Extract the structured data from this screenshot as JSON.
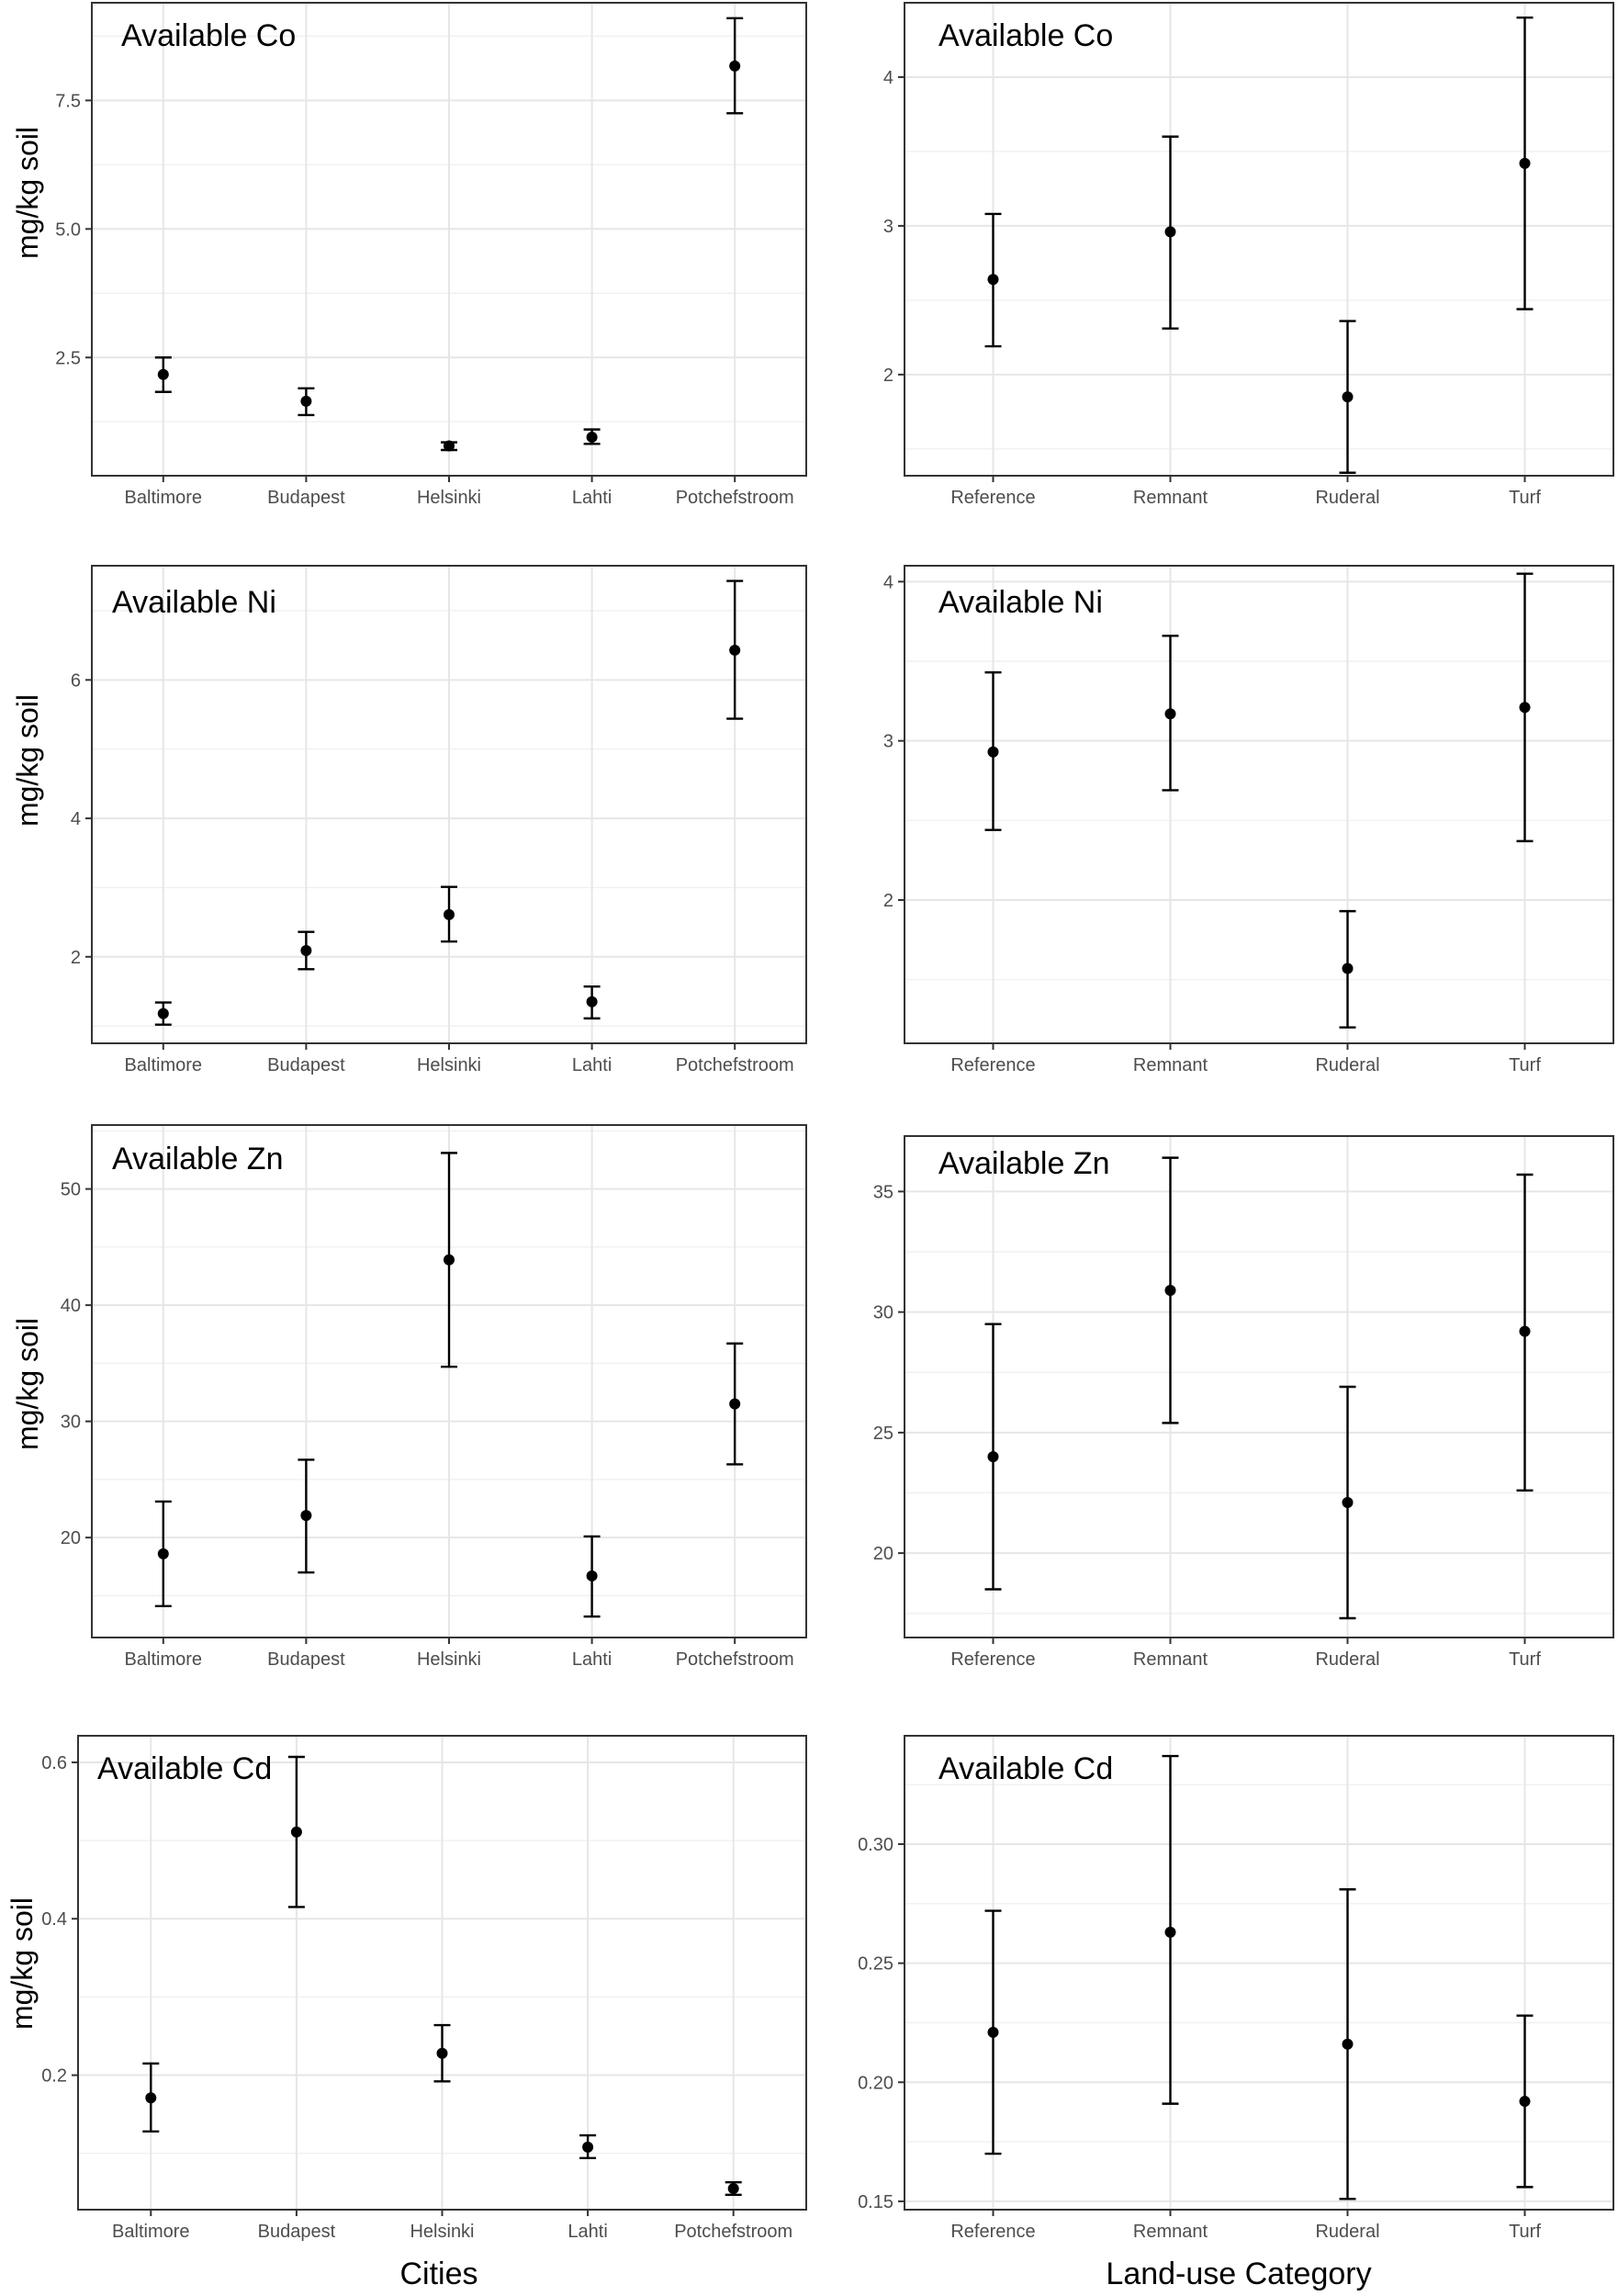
{
  "chart_data": [
    {
      "id": "co-cities",
      "type": "scatter",
      "title": "Available Co",
      "ylabel": "mg/kg soil",
      "categories": [
        "Baltimore",
        "Budapest",
        "Helsinki",
        "Lahti",
        "Potchefstroom"
      ],
      "values": [
        2.17,
        1.65,
        0.78,
        0.95,
        8.17
      ],
      "lower": [
        1.83,
        1.38,
        0.7,
        0.82,
        7.25
      ],
      "upper": [
        2.5,
        1.9,
        0.85,
        1.1,
        9.1
      ],
      "ylim": [
        0.2,
        9.4
      ],
      "yticks": [
        2.5,
        5.0,
        7.5
      ],
      "ytick_labels": [
        "2.5",
        "5.0",
        "7.5"
      ]
    },
    {
      "id": "co-landuse",
      "type": "scatter",
      "title": "Available Co",
      "ylabel": "",
      "categories": [
        "Reference",
        "Remnant",
        "Ruderal",
        "Turf"
      ],
      "values": [
        2.64,
        2.96,
        1.85,
        3.42
      ],
      "lower": [
        2.19,
        2.31,
        1.34,
        2.44
      ],
      "upper": [
        3.08,
        3.6,
        2.36,
        4.4
      ],
      "ylim": [
        1.32,
        4.5
      ],
      "yticks": [
        2,
        3,
        4
      ],
      "ytick_labels": [
        "2",
        "3",
        "4"
      ]
    },
    {
      "id": "ni-cities",
      "type": "scatter",
      "title": "Available Ni",
      "ylabel": "mg/kg soil",
      "categories": [
        "Baltimore",
        "Budapest",
        "Helsinki",
        "Lahti",
        "Potchefstroom"
      ],
      "values": [
        1.18,
        2.09,
        2.61,
        1.35,
        6.43
      ],
      "lower": [
        1.02,
        1.82,
        2.22,
        1.11,
        5.44
      ],
      "upper": [
        1.34,
        2.36,
        3.01,
        1.57,
        7.43
      ],
      "ylim": [
        0.75,
        7.65
      ],
      "yticks": [
        2,
        4,
        6
      ],
      "ytick_labels": [
        "2",
        "4",
        "6"
      ]
    },
    {
      "id": "ni-landuse",
      "type": "scatter",
      "title": "Available Ni",
      "ylabel": "",
      "categories": [
        "Reference",
        "Remnant",
        "Ruderal",
        "Turf"
      ],
      "values": [
        2.93,
        3.17,
        1.57,
        3.21
      ],
      "lower": [
        2.44,
        2.69,
        1.2,
        2.37
      ],
      "upper": [
        3.43,
        3.66,
        1.93,
        4.05
      ],
      "ylim": [
        1.1,
        4.1
      ],
      "yticks": [
        2,
        3,
        4
      ],
      "ytick_labels": [
        "2",
        "3",
        "4"
      ]
    },
    {
      "id": "zn-cities",
      "type": "scatter",
      "title": "Available Zn",
      "ylabel": "mg/kg soil",
      "categories": [
        "Baltimore",
        "Budapest",
        "Helsinki",
        "Lahti",
        "Potchefstroom"
      ],
      "values": [
        18.6,
        21.9,
        43.9,
        16.7,
        31.5
      ],
      "lower": [
        14.1,
        17.0,
        34.7,
        13.2,
        26.3
      ],
      "upper": [
        23.1,
        26.7,
        53.1,
        20.1,
        36.7
      ],
      "ylim": [
        11.4,
        55.5
      ],
      "yticks": [
        20,
        30,
        40,
        50
      ],
      "ytick_labels": [
        "20",
        "30",
        "40",
        "50"
      ]
    },
    {
      "id": "zn-landuse",
      "type": "scatter",
      "title": "Available Zn",
      "ylabel": "",
      "categories": [
        "Reference",
        "Remnant",
        "Ruderal",
        "Turf"
      ],
      "values": [
        24.0,
        30.9,
        22.1,
        29.2
      ],
      "lower": [
        18.5,
        25.4,
        17.3,
        22.6
      ],
      "upper": [
        29.5,
        36.4,
        26.9,
        35.7
      ],
      "ylim": [
        16.5,
        37.3
      ],
      "yticks": [
        20,
        25,
        30,
        35
      ],
      "ytick_labels": [
        "20",
        "25",
        "30",
        "35"
      ]
    },
    {
      "id": "cd-cities",
      "type": "scatter",
      "title": "Available Cd",
      "ylabel": "mg/kg soil",
      "categories": [
        "Baltimore",
        "Budapest",
        "Helsinki",
        "Lahti",
        "Potchefstroom"
      ],
      "values": [
        0.171,
        0.511,
        0.228,
        0.108,
        0.055
      ],
      "lower": [
        0.128,
        0.415,
        0.192,
        0.094,
        0.047
      ],
      "upper": [
        0.215,
        0.607,
        0.264,
        0.123,
        0.063
      ],
      "ylim": [
        0.028,
        0.634
      ],
      "yticks": [
        0.2,
        0.4,
        0.6
      ],
      "ytick_labels": [
        "0.2",
        "0.4",
        "0.6"
      ]
    },
    {
      "id": "cd-landuse",
      "type": "scatter",
      "title": "Available Cd",
      "ylabel": "",
      "categories": [
        "Reference",
        "Remnant",
        "Ruderal",
        "Turf"
      ],
      "values": [
        0.221,
        0.263,
        0.216,
        0.192
      ],
      "lower": [
        0.17,
        0.191,
        0.151,
        0.156
      ],
      "upper": [
        0.272,
        0.337,
        0.281,
        0.228
      ],
      "ylim": [
        0.1465,
        0.3455
      ],
      "yticks": [
        0.15,
        0.2,
        0.25,
        0.3
      ],
      "ytick_labels": [
        "0.15",
        "0.20",
        "0.25",
        "0.30"
      ]
    }
  ],
  "figure": {
    "left_xlabel": "Cities",
    "right_xlabel": "Land-use Category"
  }
}
